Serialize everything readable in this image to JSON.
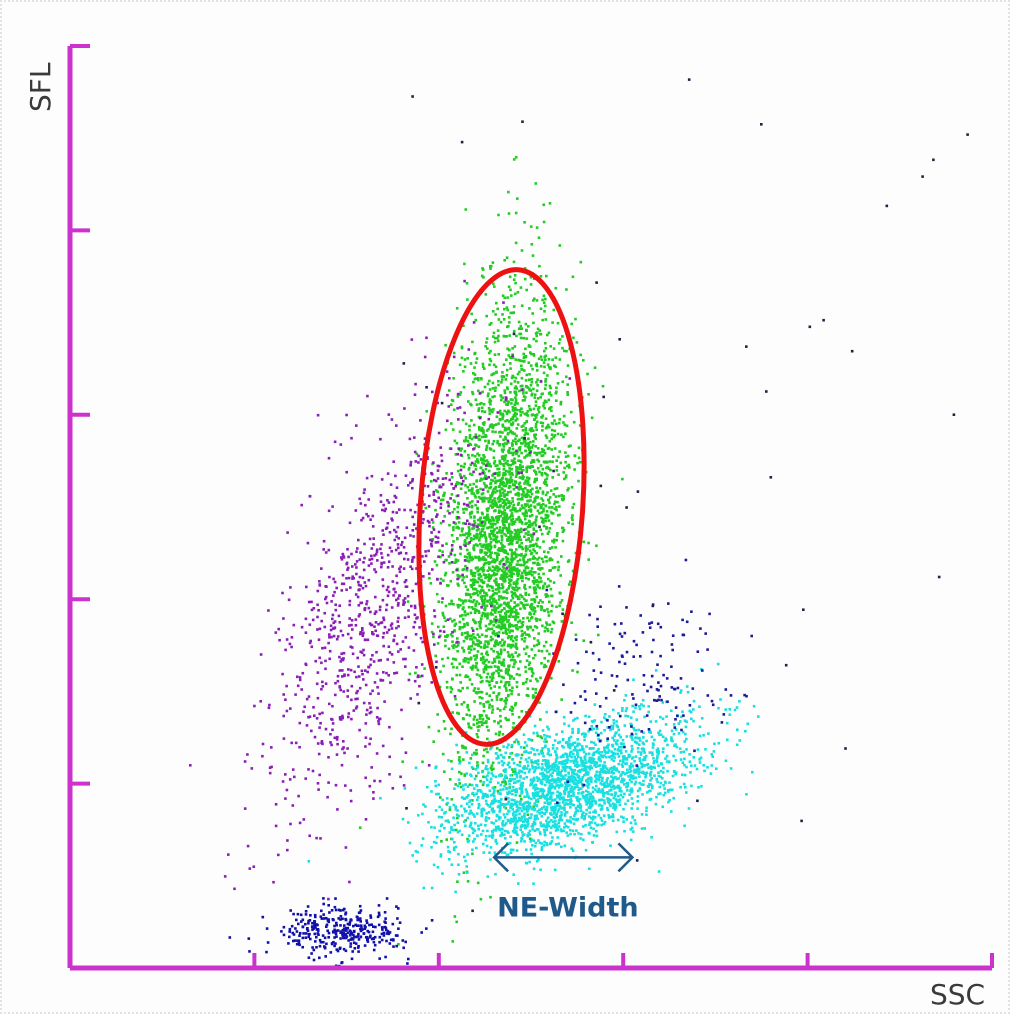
{
  "chart_data": {
    "type": "scatter",
    "title": "",
    "xlabel": "SSC",
    "ylabel": "SFL",
    "xlim": [
      0,
      5
    ],
    "ylim": [
      0,
      5
    ],
    "x_ticks": [
      1,
      2,
      3,
      4,
      5
    ],
    "y_ticks": [
      1,
      2,
      3,
      4,
      5
    ],
    "tick_labels_shown": false,
    "grid": false,
    "legend": "none",
    "axis_color": "#cc33cc",
    "series": [
      {
        "id": "neutrophils",
        "color": "#22cc22",
        "center": [
          2.35,
          2.35
        ],
        "spread": [
          0.16,
          0.62
        ],
        "tilt": 0.22,
        "count": 3400
      },
      {
        "id": "lymphocytes",
        "color": "#19e0e0",
        "center": [
          2.7,
          1.0
        ],
        "spread": [
          0.33,
          0.16
        ],
        "tilt": 0.5,
        "count": 2200
      },
      {
        "id": "monocytes",
        "color": "#8a1fb5",
        "center": [
          1.65,
          2.0
        ],
        "spread": [
          0.26,
          0.55
        ],
        "tilt": 0.9,
        "count": 900
      },
      {
        "id": "eosinophils",
        "color": "#1a1a9a",
        "center": [
          3.1,
          1.6
        ],
        "spread": [
          0.25,
          0.25
        ],
        "tilt": 0,
        "count": 140
      },
      {
        "id": "debris",
        "color": "#1010aa",
        "center": [
          1.45,
          0.2
        ],
        "spread": [
          0.18,
          0.07
        ],
        "tilt": 0,
        "count": 330
      }
    ],
    "gate": {
      "type": "ellipse",
      "color": "#ee1111",
      "center": [
        2.34,
        2.5
      ],
      "radii": [
        0.44,
        1.29
      ],
      "rotation_deg": 4
    },
    "annotations": [
      {
        "label": "NE-Width",
        "color": "#1f5a8a",
        "arrow_x": [
          2.3,
          3.05
        ],
        "arrow_y": 0.6,
        "label_x": 2.7,
        "label_y": 0.28
      }
    ]
  }
}
